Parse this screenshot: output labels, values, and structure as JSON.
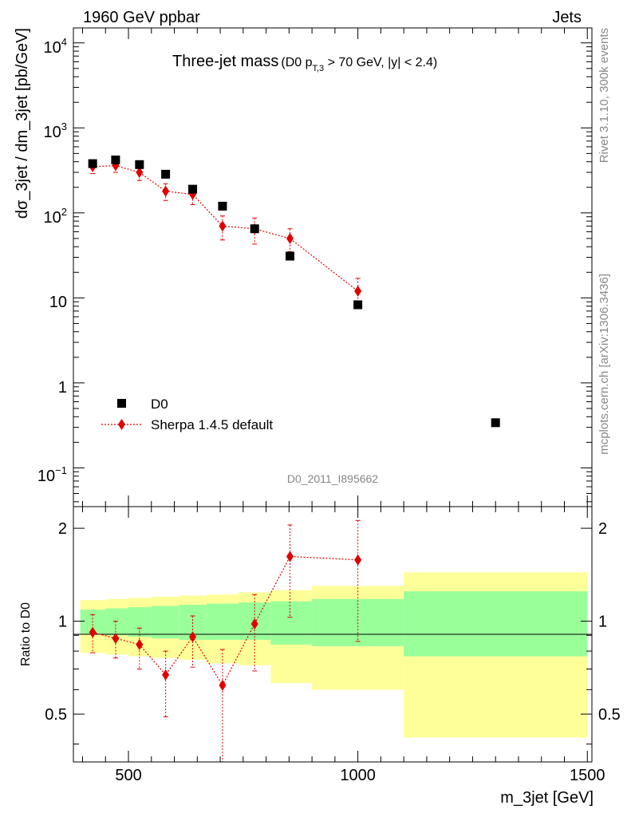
{
  "header": {
    "left": "1960 GeV ppbar",
    "right": "Jets"
  },
  "side": {
    "top": "Rivet 3.1.10,  300k events",
    "bottom": "mcplots.cern.ch [arXiv:1306.3436]"
  },
  "chart_data": [
    {
      "type": "scatter",
      "panel": "main",
      "title": "Three-jet mass",
      "subtitle": "(D0 p_T,3 > 70 GeV, |y| < 2.4)",
      "subtitle_parts": {
        "open": "(D0 p",
        "sub": "T,3",
        "rest": " > 70 GeV, |y| < 2.4)"
      },
      "ylabel": "dσ_3jet / dm_3jet [pb/GeV]",
      "yscale": "log",
      "ylim": [
        0.035,
        15000
      ],
      "xlim": [
        380,
        1510
      ],
      "ytick_labels": {
        "big": [
          "10",
          "10",
          "1",
          "10",
          "10",
          "10"
        ],
        "exp": [
          "−1",
          "2",
          "3",
          "4"
        ]
      },
      "watermark": "D0_2011_I895662",
      "series": [
        {
          "name": "D0",
          "marker": "square",
          "color": "#000000",
          "x": [
            422,
            472,
            524,
            581,
            640,
            705,
            775,
            852,
            1000,
            1300
          ],
          "y": [
            380,
            420,
            370,
            285,
            190,
            120,
            65,
            31,
            8.3,
            0.34
          ]
        },
        {
          "name": "Sherpa 1.4.5 default",
          "marker": "diamond",
          "line": "dotted",
          "color": "#e00000",
          "x": [
            422,
            472,
            524,
            581,
            640,
            705,
            775,
            852,
            1000
          ],
          "y": [
            350,
            360,
            300,
            180,
            165,
            70,
            65,
            50,
            12
          ],
          "yerr_low": [
            60,
            60,
            60,
            40,
            40,
            22,
            22,
            15,
            4.5
          ],
          "yerr_high": [
            60,
            60,
            60,
            40,
            40,
            22,
            22,
            15,
            5
          ]
        }
      ]
    },
    {
      "type": "line",
      "panel": "ratio",
      "xlabel": "m_3jet [GeV]",
      "ylabel": "Ratio to D0",
      "ylim": [
        0.35,
        2.35
      ],
      "xticks": [
        500,
        1000,
        1500
      ],
      "xtick_labels": [
        "500",
        "1000",
        "1500"
      ],
      "yticks": [
        0.5,
        1,
        2
      ],
      "ytick_labels": [
        "0.5",
        "1",
        "2"
      ],
      "bands": {
        "bin_edges": [
          395,
          450,
          500,
          550,
          610,
          670,
          740,
          810,
          900,
          1100,
          1500
        ],
        "inner_low": [
          0.91,
          0.9,
          0.89,
          0.88,
          0.87,
          0.87,
          0.87,
          0.84,
          0.83,
          0.77
        ],
        "inner_high": [
          1.09,
          1.1,
          1.11,
          1.12,
          1.13,
          1.14,
          1.15,
          1.16,
          1.18,
          1.25
        ],
        "outer_low": [
          0.79,
          0.78,
          0.77,
          0.76,
          0.75,
          0.73,
          0.72,
          0.63,
          0.6,
          0.42
        ],
        "outer_high": [
          1.17,
          1.18,
          1.19,
          1.2,
          1.21,
          1.22,
          1.24,
          1.26,
          1.3,
          1.44
        ],
        "inner_color": "#99ff99",
        "outer_color": "#ffff99"
      },
      "series": [
        {
          "name": "Sherpa 1.4.5 default / D0",
          "color": "#e00000",
          "x": [
            422,
            472,
            524,
            581,
            640,
            705,
            775,
            852,
            1000
          ],
          "y": [
            0.92,
            0.88,
            0.84,
            0.67,
            0.89,
            0.62,
            0.98,
            1.62,
            1.58
          ],
          "ylow": [
            0.79,
            0.76,
            0.7,
            0.49,
            0.71,
            0.35,
            0.69,
            1.03,
            0.86
          ],
          "yhigh": [
            1.05,
            1.0,
            0.95,
            0.8,
            1.04,
            0.81,
            1.22,
            2.05,
            2.12
          ]
        }
      ]
    }
  ]
}
